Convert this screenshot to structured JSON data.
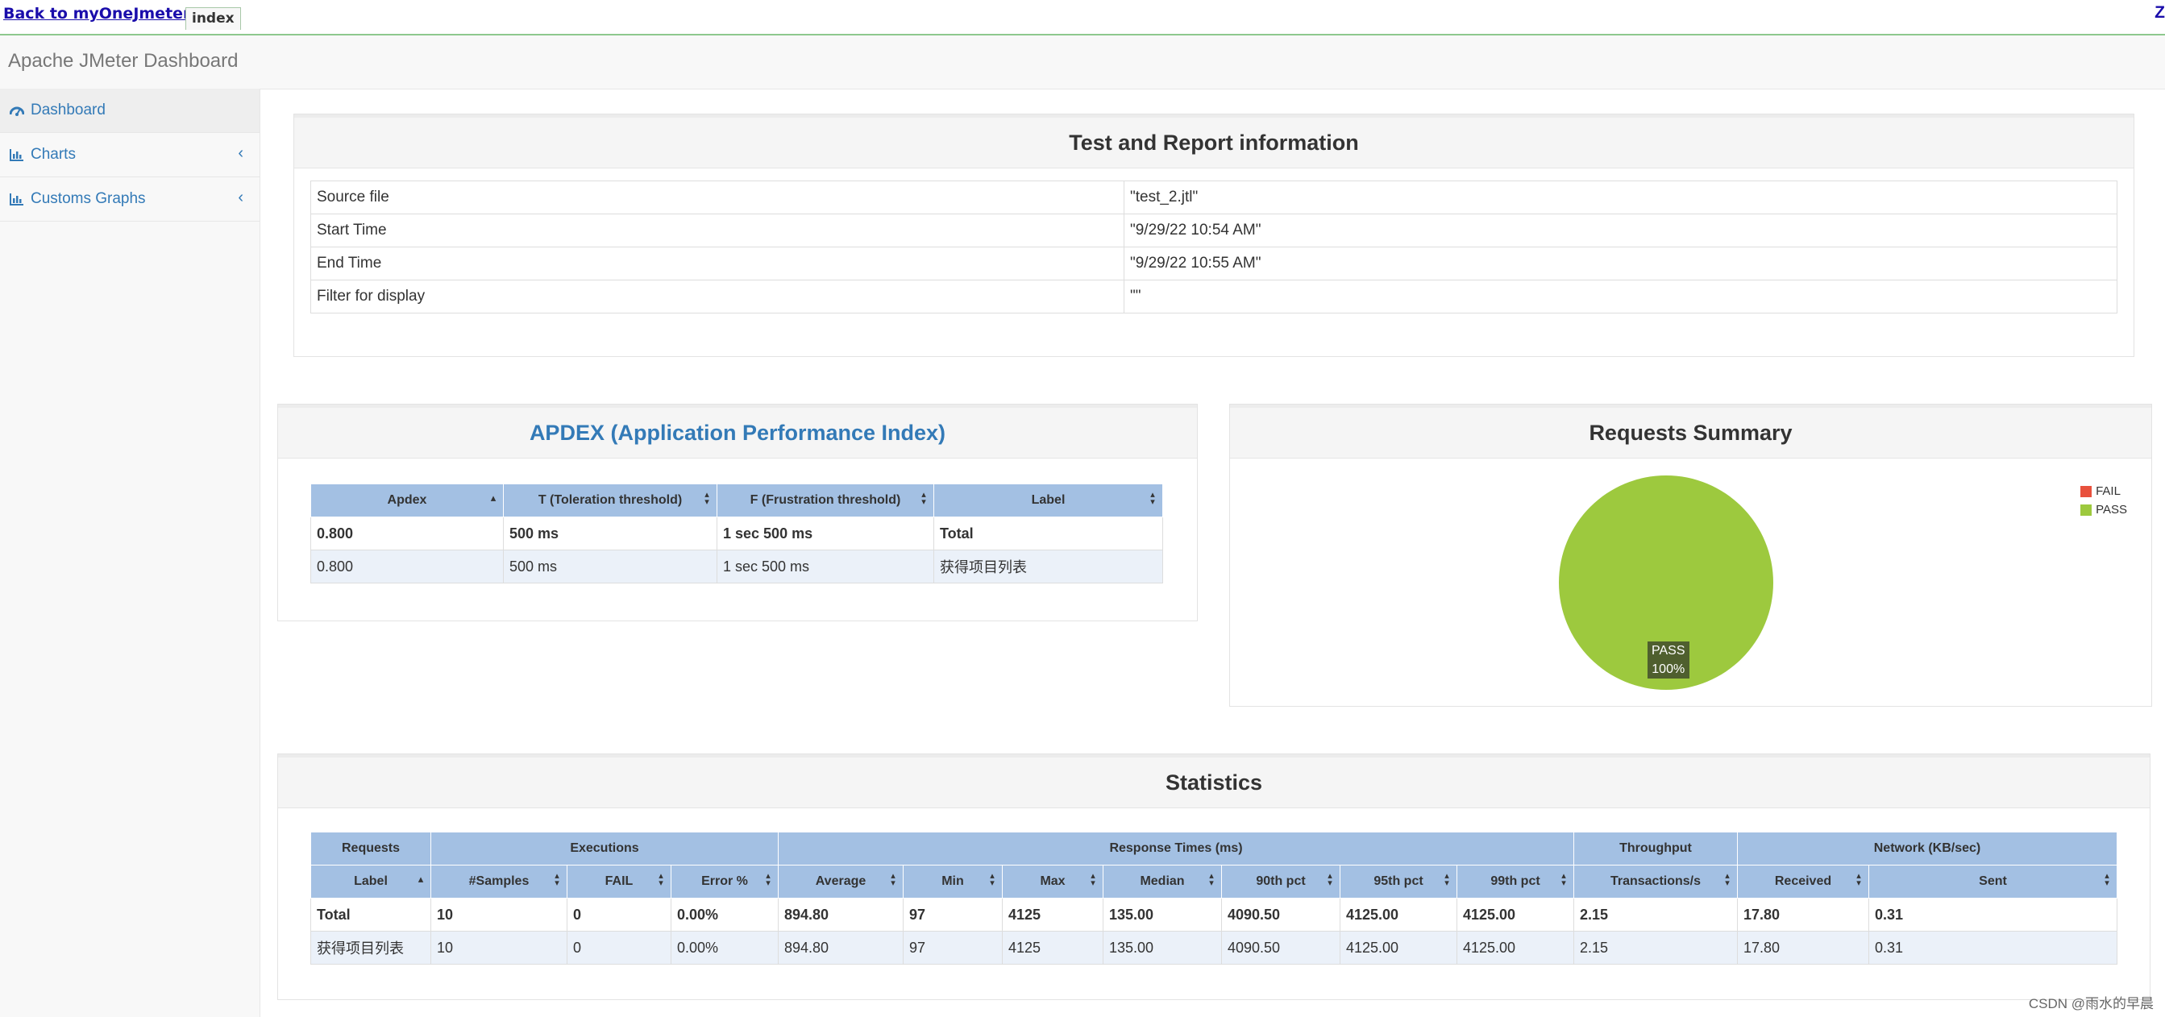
{
  "topbar": {
    "back_link": "Back to myOneJmeter",
    "tab_label": "index",
    "right_link": "Z"
  },
  "header": {
    "brand": "Apache JMeter Dashboard"
  },
  "sidebar": {
    "items": [
      {
        "label": "Dashboard",
        "icon": "dashboard-icon"
      },
      {
        "label": "Charts",
        "icon": "bar-chart-icon",
        "arrow": "‹"
      },
      {
        "label": "Customs Graphs",
        "icon": "bar-chart-icon",
        "arrow": "‹"
      }
    ]
  },
  "info": {
    "title": "Test and Report information",
    "rows": [
      {
        "label": "Source file",
        "value": "\"test_2.jtl\""
      },
      {
        "label": "Start Time",
        "value": "\"9/29/22 10:54 AM\""
      },
      {
        "label": "End Time",
        "value": "\"9/29/22 10:55 AM\""
      },
      {
        "label": "Filter for display",
        "value": "\"\""
      }
    ]
  },
  "apdex": {
    "title": "APDEX (Application Performance Index)",
    "headers": [
      "Apdex",
      "T (Toleration threshold)",
      "F (Frustration threshold)",
      "Label"
    ],
    "rows": [
      [
        "0.800",
        "500 ms",
        "1 sec 500 ms",
        "Total"
      ],
      [
        "0.800",
        "500 ms",
        "1 sec 500 ms",
        "获得项目列表"
      ]
    ]
  },
  "summary": {
    "title": "Requests Summary",
    "legend": [
      {
        "label": "FAIL",
        "color": "#e8513d"
      },
      {
        "label": "PASS",
        "color": "#9dc93e"
      }
    ],
    "pie_label": "PASS",
    "pie_percent": "100%",
    "chart_data": {
      "type": "pie",
      "labels": [
        "FAIL",
        "PASS"
      ],
      "values": [
        0,
        100
      ],
      "legend": "top-right"
    }
  },
  "stats": {
    "title": "Statistics",
    "groups": [
      "Requests",
      "Executions",
      "Response Times (ms)",
      "Throughput",
      "Network (KB/sec)"
    ],
    "headers": [
      "Label",
      "#Samples",
      "FAIL",
      "Error %",
      "Average",
      "Min",
      "Max",
      "Median",
      "90th pct",
      "95th pct",
      "99th pct",
      "Transactions/s",
      "Received",
      "Sent"
    ],
    "rows": [
      [
        "Total",
        "10",
        "0",
        "0.00%",
        "894.80",
        "97",
        "4125",
        "135.00",
        "4090.50",
        "4125.00",
        "4125.00",
        "2.15",
        "17.80",
        "0.31"
      ],
      [
        "获得项目列表",
        "10",
        "0",
        "0.00%",
        "894.80",
        "97",
        "4125",
        "135.00",
        "4090.50",
        "4125.00",
        "4125.00",
        "2.15",
        "17.80",
        "0.31"
      ]
    ]
  },
  "footer": {
    "watermark": "CSDN @雨水的早晨"
  }
}
